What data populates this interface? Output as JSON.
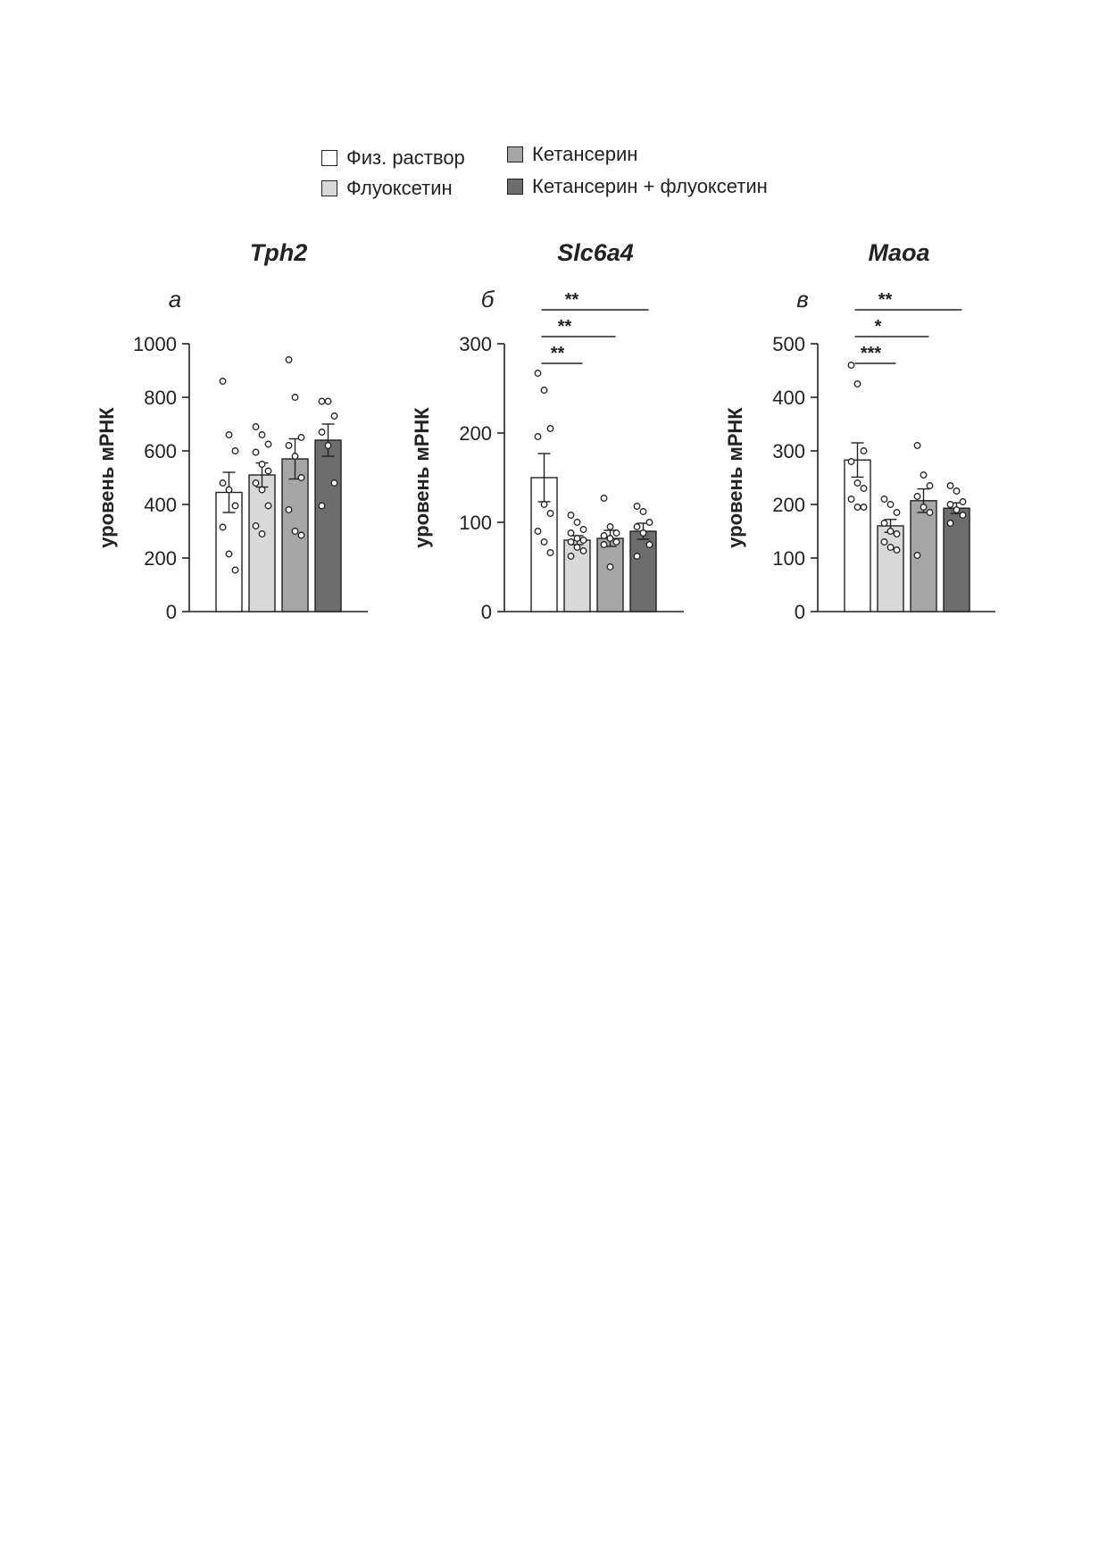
{
  "legend": {
    "items": [
      {
        "label": "Физ. раствор",
        "color": "#ffffff"
      },
      {
        "label": "Флуоксетин",
        "color": "#d9d9d9"
      },
      {
        "label": "Кетансерин",
        "color": "#a6a6a6"
      },
      {
        "label": "Кетансерин + флуоксетин",
        "color": "#6d6d6d"
      }
    ]
  },
  "chart_data": [
    {
      "type": "bar",
      "panel_letter": "а",
      "title": "Tph2",
      "ylabel": "уровень мРНК",
      "ylim": [
        0,
        1000
      ],
      "yticks": [
        0,
        200,
        400,
        600,
        800,
        1000
      ],
      "series": [
        {
          "name": "Физ. раствор",
          "mean": 445,
          "sem": 75,
          "points": [
            860,
            660,
            600,
            480,
            455,
            395,
            315,
            215,
            155
          ]
        },
        {
          "name": "Флуоксетин",
          "mean": 510,
          "sem": 45,
          "points": [
            690,
            660,
            625,
            595,
            550,
            525,
            480,
            455,
            395,
            320,
            290
          ]
        },
        {
          "name": "Кетансерин",
          "mean": 570,
          "sem": 75,
          "points": [
            940,
            800,
            650,
            620,
            580,
            500,
            380,
            300,
            285
          ]
        },
        {
          "name": "Кетансерин + флуоксетин",
          "mean": 640,
          "sem": 60,
          "points": [
            785,
            785,
            730,
            670,
            620,
            480,
            395
          ]
        }
      ],
      "significance": []
    },
    {
      "type": "bar",
      "panel_letter": "б",
      "title": "Slc6a4",
      "ylabel": "уровень мРНК",
      "ylim": [
        0,
        300
      ],
      "yticks": [
        0,
        100,
        200,
        300
      ],
      "series": [
        {
          "name": "Физ. раствор",
          "mean": 150,
          "sem": 27,
          "points": [
            267,
            248,
            205,
            196,
            120,
            110,
            90,
            78,
            66
          ]
        },
        {
          "name": "Флуоксетин",
          "mean": 80,
          "sem": 5,
          "points": [
            108,
            100,
            92,
            88,
            82,
            80,
            78,
            72,
            68,
            62
          ]
        },
        {
          "name": "Кетансерин",
          "mean": 82,
          "sem": 9,
          "points": [
            127,
            95,
            88,
            85,
            82,
            78,
            75,
            50
          ]
        },
        {
          "name": "Кетансерин + флуоксетин",
          "mean": 90,
          "sem": 9,
          "points": [
            118,
            112,
            100,
            95,
            88,
            75,
            62
          ]
        }
      ],
      "significance": [
        {
          "from": 0,
          "to": 1,
          "label": "**",
          "level": 1
        },
        {
          "from": 0,
          "to": 2,
          "label": "**",
          "level": 2
        },
        {
          "from": 0,
          "to": 3,
          "label": "**",
          "level": 3
        }
      ]
    },
    {
      "type": "bar",
      "panel_letter": "в",
      "title": "Maoa",
      "ylabel": "уровень мРНК",
      "ylim": [
        0,
        500
      ],
      "yticks": [
        0,
        100,
        200,
        300,
        400,
        500
      ],
      "series": [
        {
          "name": "Физ. раствор",
          "mean": 283,
          "sem": 32,
          "points": [
            460,
            425,
            300,
            280,
            240,
            230,
            210,
            195,
            195
          ]
        },
        {
          "name": "Флуоксетин",
          "mean": 160,
          "sem": 12,
          "points": [
            210,
            200,
            185,
            165,
            150,
            145,
            130,
            120,
            115
          ]
        },
        {
          "name": "Кетансерин",
          "mean": 207,
          "sem": 22,
          "points": [
            310,
            255,
            235,
            215,
            195,
            185,
            105
          ]
        },
        {
          "name": "Кетансерин + флуоксетин",
          "mean": 193,
          "sem": 10,
          "points": [
            235,
            225,
            205,
            200,
            190,
            180,
            165
          ]
        }
      ],
      "significance": [
        {
          "from": 0,
          "to": 1,
          "label": "***",
          "level": 1
        },
        {
          "from": 0,
          "to": 2,
          "label": "*",
          "level": 2
        },
        {
          "from": 0,
          "to": 3,
          "label": "**",
          "level": 3
        }
      ]
    }
  ]
}
